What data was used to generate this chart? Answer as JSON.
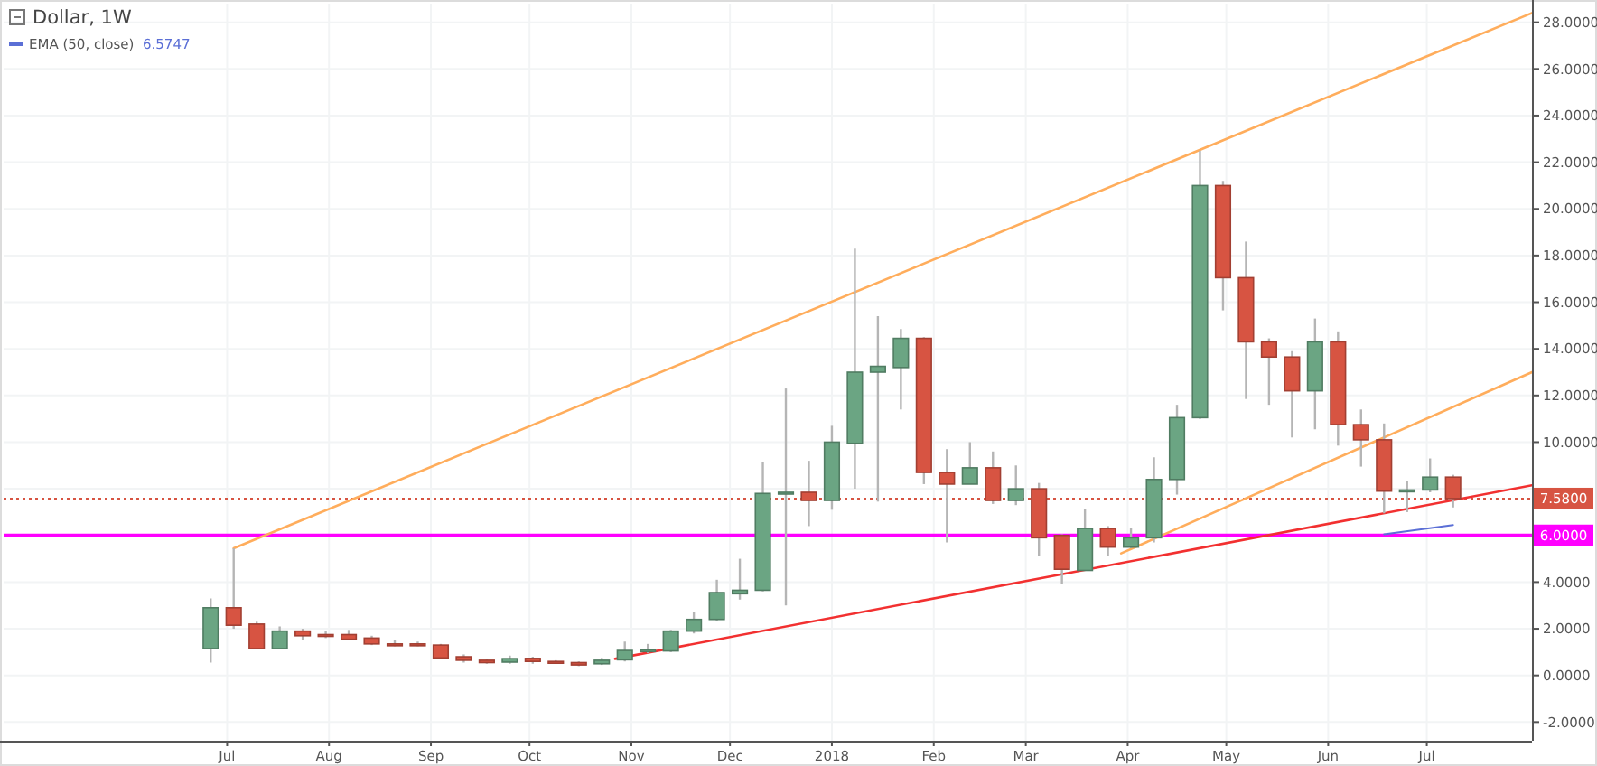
{
  "chart_data": {
    "type": "candlestick",
    "title": "Dollar, 1W",
    "x": [
      "2017-06-26",
      "2017-07-03",
      "2017-07-10",
      "2017-07-17",
      "2017-07-24",
      "2017-07-31",
      "2017-08-07",
      "2017-08-14",
      "2017-08-21",
      "2017-08-28",
      "2017-09-04",
      "2017-09-11",
      "2017-09-18",
      "2017-09-25",
      "2017-10-02",
      "2017-10-09",
      "2017-10-16",
      "2017-10-23",
      "2017-10-30",
      "2017-11-06",
      "2017-11-13",
      "2017-11-20",
      "2017-11-27",
      "2017-12-04",
      "2017-12-11",
      "2017-12-18",
      "2017-12-25",
      "2018-01-01",
      "2018-01-08",
      "2018-01-15",
      "2018-01-22",
      "2018-01-29",
      "2018-02-05",
      "2018-02-12",
      "2018-02-19",
      "2018-02-26",
      "2018-03-05",
      "2018-03-12",
      "2018-03-19",
      "2018-03-26",
      "2018-04-02",
      "2018-04-09",
      "2018-04-16",
      "2018-04-23",
      "2018-04-30",
      "2018-05-07",
      "2018-05-14",
      "2018-05-21",
      "2018-05-28",
      "2018-06-04",
      "2018-06-11",
      "2018-06-18",
      "2018-06-25",
      "2018-07-02",
      "2018-07-09"
    ],
    "ohlc": [
      [
        1.15,
        3.3,
        0.55,
        2.9
      ],
      [
        2.9,
        5.45,
        2.0,
        2.15
      ],
      [
        2.2,
        2.3,
        1.15,
        1.15
      ],
      [
        1.15,
        2.1,
        1.15,
        1.9
      ],
      [
        1.9,
        2.0,
        1.5,
        1.7
      ],
      [
        1.75,
        1.9,
        1.6,
        1.7
      ],
      [
        1.75,
        1.95,
        1.5,
        1.55
      ],
      [
        1.6,
        1.7,
        1.3,
        1.35
      ],
      [
        1.35,
        1.5,
        1.25,
        1.3
      ],
      [
        1.35,
        1.45,
        1.25,
        1.3
      ],
      [
        1.3,
        1.35,
        0.7,
        0.75
      ],
      [
        0.8,
        0.9,
        0.55,
        0.65
      ],
      [
        0.65,
        0.7,
        0.5,
        0.55
      ],
      [
        0.57,
        0.85,
        0.5,
        0.72
      ],
      [
        0.73,
        0.8,
        0.5,
        0.6
      ],
      [
        0.6,
        0.65,
        0.5,
        0.58
      ],
      [
        0.55,
        0.6,
        0.4,
        0.45
      ],
      [
        0.5,
        0.75,
        0.45,
        0.65
      ],
      [
        0.67,
        1.45,
        0.6,
        1.07
      ],
      [
        1.05,
        1.35,
        0.95,
        1.1
      ],
      [
        1.05,
        1.95,
        1.0,
        1.9
      ],
      [
        1.9,
        2.7,
        1.8,
        2.4
      ],
      [
        2.4,
        4.1,
        2.35,
        3.55
      ],
      [
        3.5,
        5.0,
        3.25,
        3.65
      ],
      [
        3.65,
        9.15,
        3.6,
        7.8
      ],
      [
        7.8,
        12.3,
        3.0,
        7.85
      ],
      [
        7.85,
        9.2,
        6.4,
        7.5
      ],
      [
        7.5,
        10.7,
        7.1,
        10.0
      ],
      [
        9.95,
        18.3,
        8.0,
        13.0
      ],
      [
        13.0,
        15.4,
        7.45,
        13.25
      ],
      [
        13.2,
        14.85,
        11.4,
        14.45
      ],
      [
        14.45,
        14.5,
        8.2,
        8.7
      ],
      [
        8.7,
        9.7,
        5.7,
        8.2
      ],
      [
        8.2,
        10.0,
        8.2,
        8.9
      ],
      [
        8.9,
        9.6,
        7.35,
        7.5
      ],
      [
        7.5,
        9.0,
        7.3,
        8.0
      ],
      [
        8.0,
        8.25,
        5.1,
        5.9
      ],
      [
        6.0,
        6.05,
        3.9,
        4.55
      ],
      [
        4.5,
        7.15,
        4.5,
        6.3
      ],
      [
        6.3,
        6.4,
        5.1,
        5.5
      ],
      [
        5.5,
        6.3,
        5.45,
        5.9
      ],
      [
        5.9,
        9.35,
        5.7,
        8.4
      ],
      [
        8.4,
        11.6,
        7.75,
        11.05
      ],
      [
        11.05,
        22.5,
        11.0,
        21.0
      ],
      [
        21.0,
        21.2,
        15.65,
        17.05
      ],
      [
        17.05,
        18.6,
        11.85,
        14.3
      ],
      [
        14.3,
        14.45,
        11.6,
        13.65
      ],
      [
        13.65,
        13.9,
        10.2,
        12.2
      ],
      [
        12.2,
        15.3,
        10.55,
        14.3
      ],
      [
        14.3,
        14.75,
        9.85,
        10.75
      ],
      [
        10.75,
        11.4,
        8.95,
        10.1
      ],
      [
        10.1,
        10.8,
        6.95,
        7.9
      ],
      [
        7.9,
        8.35,
        7.0,
        7.95
      ],
      [
        7.95,
        9.3,
        7.85,
        8.5
      ],
      [
        8.5,
        8.6,
        7.2,
        7.58
      ]
    ],
    "colors": [
      "#6ba583",
      "#d75442",
      "#d75442",
      "#6ba583",
      "#d75442",
      "#d75442",
      "#d75442",
      "#d75442",
      "#d75442",
      "#d75442",
      "#d75442",
      "#d75442",
      "#d75442",
      "#6ba583",
      "#d75442",
      "#d75442",
      "#d75442",
      "#6ba583",
      "#6ba583",
      "#6ba583",
      "#6ba583",
      "#6ba583",
      "#6ba583",
      "#6ba583",
      "#6ba583",
      "#6ba583",
      "#d75442",
      "#6ba583",
      "#6ba583",
      "#6ba583",
      "#6ba583",
      "#d75442",
      "#d75442",
      "#6ba583",
      "#d75442",
      "#6ba583",
      "#d75442",
      "#d75442",
      "#6ba583",
      "#d75442",
      "#6ba583",
      "#6ba583",
      "#6ba583",
      "#6ba583",
      "#d75442",
      "#d75442",
      "#d75442",
      "#d75442",
      "#6ba583",
      "#d75442",
      "#d75442",
      "#d75442",
      "#6ba583",
      "#6ba583",
      "#d75442"
    ],
    "series": [
      {
        "type": "line",
        "name": "EMA (50, close)",
        "color": "#5b6fd6",
        "x": [
          "2018-06-18",
          "2018-07-09"
        ],
        "values": [
          6.05,
          6.45
        ]
      },
      {
        "type": "line",
        "color": "#ffad5c",
        "x": [
          "2017-07-03",
          "2018-08-02"
        ],
        "values": [
          5.45,
          28.4
        ]
      },
      {
        "type": "line",
        "color": "#ffad5c",
        "x": [
          "2018-03-30",
          "2018-08-02"
        ],
        "values": [
          5.23,
          13.0
        ]
      },
      {
        "type": "line",
        "color": "#f23030",
        "x": [
          "2017-10-27",
          "2018-08-02"
        ],
        "values": [
          0.71,
          8.15
        ]
      }
    ],
    "annotations": [
      "6.5747"
    ],
    "legend": "top left",
    "ref_lines": [
      {
        "axis": "y",
        "value": 7.58,
        "label": "7.5800",
        "color": "#d75442",
        "line_style": "dotted"
      },
      {
        "axis": "y",
        "value": 6.0,
        "label": "6.0000",
        "color": "#ff00ff",
        "line_style": "solid"
      }
    ],
    "xlim": [
      "2017-04-24",
      "2018-08-02"
    ],
    "xticks": [
      {
        "value": "2017-07-01",
        "label": "Jul"
      },
      {
        "value": "2017-08-01",
        "label": "Aug"
      },
      {
        "value": "2017-09-01",
        "label": "Sep"
      },
      {
        "value": "2017-10-01",
        "label": "Oct"
      },
      {
        "value": "2017-11-01",
        "label": "Nov"
      },
      {
        "value": "2017-12-01",
        "label": "Dec"
      },
      {
        "value": "2018-01-01",
        "label": "2018"
      },
      {
        "value": "2018-02-01",
        "label": "Feb"
      },
      {
        "value": "2018-03-01",
        "label": "Mar"
      },
      {
        "value": "2018-04-01",
        "label": "Apr"
      },
      {
        "value": "2018-05-01",
        "label": "May"
      },
      {
        "value": "2018-06-01",
        "label": "Jun"
      },
      {
        "value": "2018-07-01",
        "label": "Jul"
      }
    ],
    "ylim": [
      -2.8,
      28.8
    ],
    "yticks": [
      {
        "value": -2,
        "label": "-2.0000"
      },
      {
        "value": 0,
        "label": "0.0000"
      },
      {
        "value": 2,
        "label": "2.0000"
      },
      {
        "value": 4,
        "label": "4.0000"
      },
      {
        "value": 6,
        "label": null
      },
      {
        "value": 8,
        "label": null
      },
      {
        "value": 10,
        "label": "10.0000"
      },
      {
        "value": 12,
        "label": "12.0000"
      },
      {
        "value": 14,
        "label": "14.0000"
      },
      {
        "value": 16,
        "label": "16.0000"
      },
      {
        "value": 18,
        "label": "18.0000"
      },
      {
        "value": 20,
        "label": "20.0000"
      },
      {
        "value": 22,
        "label": "22.0000"
      },
      {
        "value": 24,
        "label": "24.0000"
      },
      {
        "value": 26,
        "label": "26.0000"
      },
      {
        "value": 28,
        "label": "28.0000"
      }
    ],
    "grid": true,
    "line_style": "solid"
  }
}
